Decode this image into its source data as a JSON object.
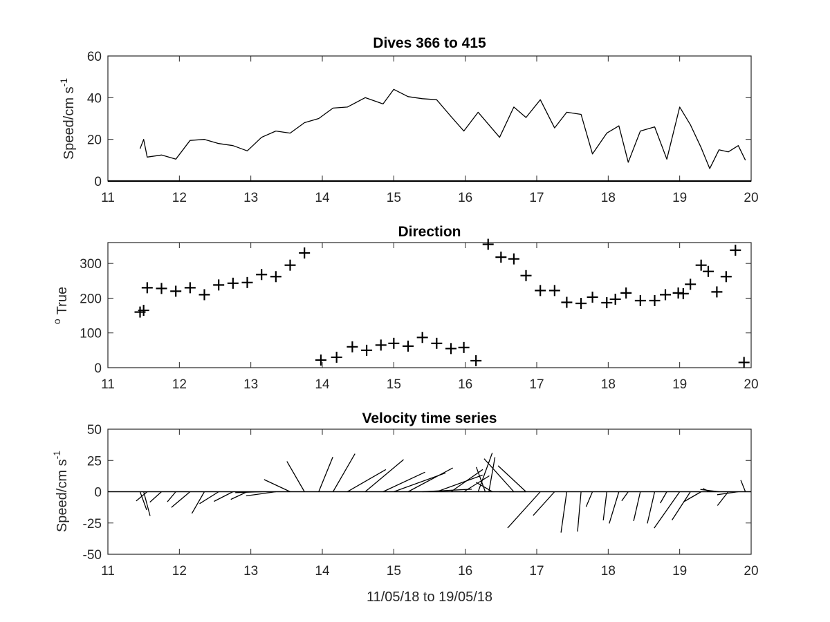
{
  "figure": {
    "xlabel": "11/05/18 to 19/05/18",
    "xlim": [
      11,
      20
    ],
    "xticks": [
      "11",
      "12",
      "13",
      "14",
      "15",
      "16",
      "17",
      "18",
      "19",
      "20"
    ]
  },
  "chart_data": [
    {
      "type": "line",
      "title": "Dives 366 to 415",
      "ylabel": "Speed/cm s",
      "ylabel_superscript": "-1",
      "ylim": [
        0,
        60
      ],
      "yticks": [
        "0",
        "20",
        "40",
        "60"
      ],
      "color": "#000000",
      "series": [
        {
          "x": [
            11.45,
            11.5,
            11.55,
            11.75,
            11.95,
            12.15,
            12.35,
            12.55,
            12.75,
            12.95,
            13.15,
            13.35,
            13.55,
            13.75,
            13.95,
            14.15,
            14.35,
            14.6,
            14.85,
            15.0,
            15.2,
            15.4,
            15.6,
            15.8,
            15.98,
            16.18,
            16.48,
            16.68,
            16.85,
            17.05,
            17.25,
            17.42,
            17.62,
            17.78,
            17.98,
            18.15,
            18.28,
            18.45,
            18.65,
            18.82,
            19.0,
            19.15,
            19.3,
            19.42,
            19.55,
            19.68,
            19.82,
            19.92
          ],
          "y": [
            15.5,
            20,
            11.5,
            12.5,
            10.5,
            19.5,
            20,
            18,
            17,
            14.5,
            21,
            24,
            23,
            28,
            30,
            35,
            35.5,
            40,
            37,
            44,
            40.5,
            39.5,
            39,
            31,
            24,
            33,
            21,
            35.5,
            30.5,
            39,
            25.5,
            33,
            32,
            13,
            23,
            26.5,
            9,
            24,
            26,
            10.5,
            35.5,
            27,
            16,
            6,
            15,
            14,
            17,
            10
          ]
        }
      ]
    },
    {
      "type": "scatter",
      "title": "Direction",
      "ylabel": "True",
      "ylabel_superscript": "o",
      "ylim": [
        0,
        360
      ],
      "yticks": [
        "0",
        "100",
        "200",
        "300"
      ],
      "marker": "+",
      "color": "#000000",
      "series": [
        {
          "x": [
            11.45,
            11.5,
            11.55,
            11.75,
            11.95,
            12.15,
            12.35,
            12.55,
            12.75,
            12.95,
            13.15,
            13.35,
            13.55,
            13.75,
            13.98,
            14.2,
            14.42,
            14.62,
            14.82,
            15.0,
            15.2,
            15.4,
            15.6,
            15.8,
            15.98,
            16.15,
            16.32,
            16.5,
            16.68,
            16.85,
            17.05,
            17.25,
            17.42,
            17.62,
            17.78,
            17.98,
            18.1,
            18.25,
            18.45,
            18.65,
            18.8,
            18.98,
            19.05,
            19.15,
            19.3,
            19.4,
            19.52,
            19.65,
            19.78,
            19.9
          ],
          "y": [
            160,
            165,
            230,
            228,
            220,
            230,
            210,
            238,
            243,
            245,
            268,
            262,
            295,
            330,
            22,
            30,
            60,
            50,
            65,
            70,
            62,
            87,
            70,
            55,
            58,
            20,
            355,
            318,
            313,
            265,
            222,
            222,
            188,
            185,
            203,
            187,
            197,
            215,
            193,
            193,
            210,
            215,
            213,
            240,
            295,
            277,
            218,
            262,
            338,
            15
          ]
        }
      ]
    },
    {
      "type": "stick",
      "title": "Velocity time series",
      "ylabel": "Speed/cm s",
      "ylabel_superscript": "-1",
      "ylim": [
        -50,
        50
      ],
      "yticks": [
        "-50",
        "-25",
        "0",
        "25",
        "50"
      ],
      "color": "#000000",
      "note_stick": "each stick starts at (x, 0) with length = speed and angle = direction (degrees True)",
      "series": [
        {
          "x": [
            11.45,
            11.5,
            11.55,
            11.75,
            11.95,
            12.15,
            12.35,
            12.55,
            12.75,
            12.95,
            13.15,
            13.35,
            13.55,
            13.75,
            13.95,
            14.15,
            14.35,
            14.6,
            14.85,
            15.0,
            15.2,
            15.4,
            15.6,
            15.8,
            15.98,
            16.18,
            16.28,
            16.33,
            16.38,
            16.48,
            16.68,
            16.85,
            17.05,
            17.25,
            17.42,
            17.62,
            17.78,
            17.98,
            18.15,
            18.28,
            18.45,
            18.65,
            18.82,
            19.0,
            19.15,
            19.3,
            19.42,
            19.55,
            19.68,
            19.82,
            19.92
          ],
          "speed": [
            15.5,
            20,
            11.5,
            12.5,
            10.5,
            19.5,
            20,
            18,
            17,
            14.5,
            21,
            24,
            23,
            28,
            30,
            35,
            35.5,
            40,
            37,
            44,
            40.5,
            39.5,
            39,
            31,
            24,
            33,
            21,
            28,
            15,
            21,
            35.5,
            30.5,
            39,
            25.5,
            33,
            32,
            13,
            23,
            26.5,
            9,
            24,
            26,
            10.5,
            35.5,
            27,
            16,
            6,
            15,
            14,
            17,
            10
          ],
          "direction": [
            160,
            165,
            230,
            228,
            220,
            230,
            210,
            238,
            243,
            245,
            268,
            262,
            295,
            330,
            22,
            30,
            60,
            50,
            65,
            70,
            62,
            87,
            70,
            55,
            58,
            20,
            340,
            10,
            300,
            90,
            318,
            313,
            222,
            222,
            188,
            185,
            203,
            187,
            197,
            215,
            193,
            193,
            210,
            215,
            213,
            240,
            295,
            277,
            218,
            262,
            338
          ]
        }
      ]
    }
  ]
}
